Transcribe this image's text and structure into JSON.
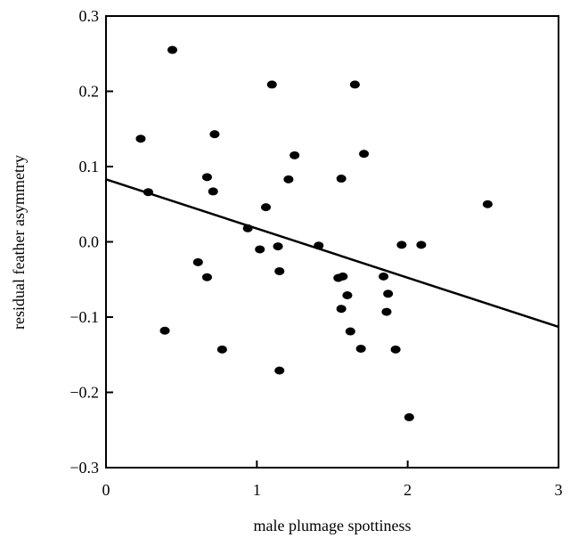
{
  "chart_data": {
    "type": "scatter",
    "title": "",
    "xlabel": "male plumage spottiness",
    "ylabel": "residual feather asymmetry",
    "xlim": [
      0,
      3
    ],
    "ylim": [
      -0.3,
      0.3
    ],
    "x_ticks": [
      0,
      1,
      2,
      3
    ],
    "x_tick_labels": [
      "0",
      "1",
      "2",
      "3"
    ],
    "y_ticks": [
      -0.3,
      -0.2,
      -0.1,
      0.0,
      0.1,
      0.2,
      0.3
    ],
    "y_tick_labels": [
      "−0.3",
      "−0.2",
      "−0.1",
      "0.0",
      "0.1",
      "0.2",
      "0.3"
    ],
    "grid": false,
    "legend": "none",
    "colors": {
      "points": "#000000",
      "line": "#000000",
      "axes": "#000000"
    },
    "series": [
      {
        "points": [
          {
            "x": 0.23,
            "y": 0.137
          },
          {
            "x": 0.28,
            "y": 0.066
          },
          {
            "x": 0.39,
            "y": -0.118
          },
          {
            "x": 0.44,
            "y": 0.255
          },
          {
            "x": 0.61,
            "y": -0.027
          },
          {
            "x": 0.67,
            "y": 0.086
          },
          {
            "x": 0.67,
            "y": -0.047
          },
          {
            "x": 0.71,
            "y": 0.067
          },
          {
            "x": 0.72,
            "y": 0.143
          },
          {
            "x": 0.77,
            "y": -0.143
          },
          {
            "x": 0.94,
            "y": 0.018
          },
          {
            "x": 1.02,
            "y": -0.01
          },
          {
            "x": 1.06,
            "y": 0.046
          },
          {
            "x": 1.1,
            "y": 0.209
          },
          {
            "x": 1.14,
            "y": -0.006
          },
          {
            "x": 1.15,
            "y": -0.039
          },
          {
            "x": 1.15,
            "y": -0.171
          },
          {
            "x": 1.21,
            "y": 0.083
          },
          {
            "x": 1.25,
            "y": 0.115
          },
          {
            "x": 1.41,
            "y": -0.005
          },
          {
            "x": 1.54,
            "y": -0.048
          },
          {
            "x": 1.56,
            "y": 0.084
          },
          {
            "x": 1.56,
            "y": -0.089
          },
          {
            "x": 1.57,
            "y": -0.046
          },
          {
            "x": 1.6,
            "y": -0.071
          },
          {
            "x": 1.62,
            "y": -0.119
          },
          {
            "x": 1.65,
            "y": 0.209
          },
          {
            "x": 1.69,
            "y": -0.142
          },
          {
            "x": 1.71,
            "y": 0.117
          },
          {
            "x": 1.84,
            "y": -0.046
          },
          {
            "x": 1.86,
            "y": -0.093
          },
          {
            "x": 1.87,
            "y": -0.069
          },
          {
            "x": 1.92,
            "y": -0.143
          },
          {
            "x": 1.96,
            "y": -0.004
          },
          {
            "x": 2.01,
            "y": -0.233
          },
          {
            "x": 2.09,
            "y": -0.004
          },
          {
            "x": 2.53,
            "y": 0.05
          }
        ]
      }
    ],
    "fit_line": {
      "x": [
        0,
        3
      ],
      "y": [
        0.083,
        -0.113
      ]
    }
  }
}
